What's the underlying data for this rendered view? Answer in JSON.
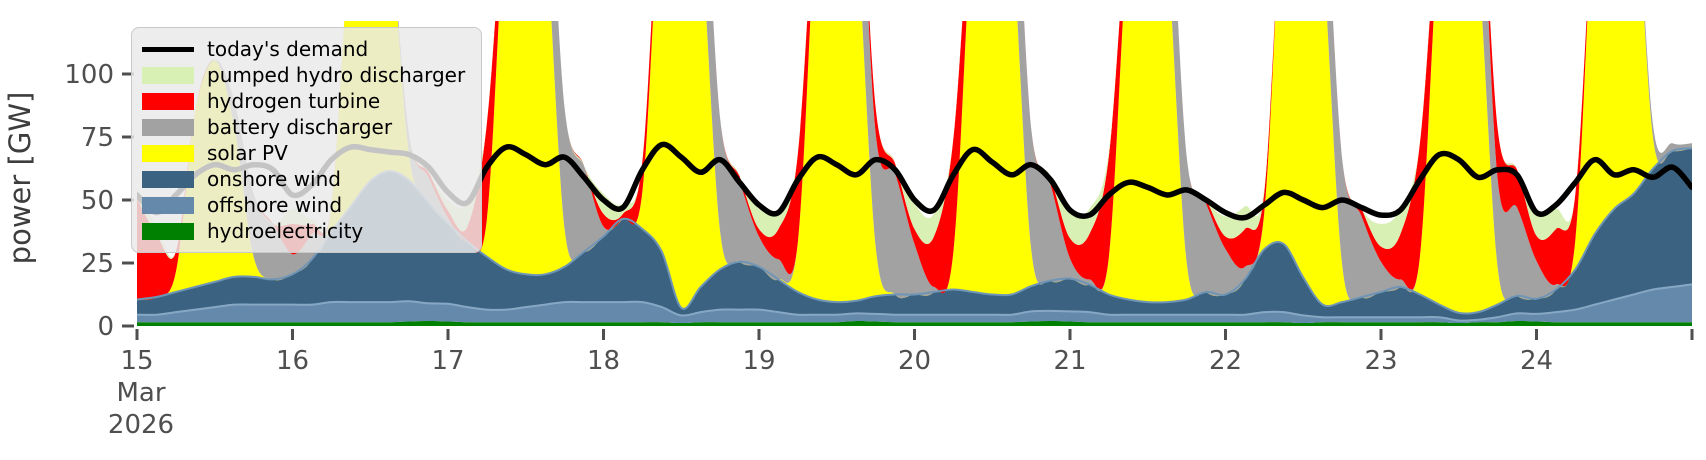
{
  "chart_data": {
    "type": "area",
    "title": "",
    "ylabel": "power [GW]",
    "xlabel_month": "Mar",
    "xlabel_year": "2026",
    "ylim": [
      0,
      121
    ],
    "y_ticks": [
      0,
      25,
      50,
      75,
      100
    ],
    "x_ticks": [
      15,
      16,
      17,
      18,
      19,
      20,
      21,
      22,
      23,
      24
    ],
    "x": {
      "start": 15,
      "step": 0.125,
      "count": 81,
      "unit": "day of March 2026"
    },
    "grid": false,
    "legend_position": "upper left",
    "axis_text_color": "#4f4f4f",
    "demand": {
      "name": "today's demand",
      "color": "#000000",
      "values": [
        52,
        45,
        52,
        60,
        64,
        62,
        64,
        62,
        52,
        56,
        66,
        71,
        70,
        69,
        68,
        63,
        53,
        49,
        63,
        71,
        68,
        64,
        67,
        59,
        50,
        47,
        62,
        72,
        67,
        61,
        66,
        57,
        48,
        45,
        58,
        67,
        64,
        60,
        66,
        62,
        50,
        46,
        60,
        70,
        65,
        60,
        64,
        58,
        46,
        44,
        52,
        57,
        55,
        52,
        54,
        50,
        45,
        43,
        48,
        53,
        50,
        47,
        50,
        47,
        44,
        46,
        58,
        68,
        66,
        59,
        62,
        60,
        45,
        48,
        57,
        66,
        60,
        62,
        59,
        63,
        55
      ]
    },
    "series": [
      {
        "name": "hydroelectricity",
        "color": "#008000",
        "values": [
          1.5,
          1.5,
          1.5,
          1.5,
          1.5,
          1.5,
          1.5,
          1.5,
          1.5,
          1.5,
          1.5,
          1.5,
          1.5,
          1.5,
          1.8,
          2,
          1.8,
          1.5,
          1.5,
          1.5,
          1.5,
          1.5,
          1.5,
          1.5,
          1.5,
          1.5,
          1.5,
          1.5,
          1.2,
          1.5,
          1.5,
          1.5,
          1.5,
          1.5,
          1.5,
          1.5,
          1.5,
          2,
          1.8,
          1.5,
          1.5,
          1.5,
          1.5,
          1.5,
          1.5,
          1.5,
          1.8,
          2,
          1.8,
          1.5,
          1.5,
          1.5,
          1.5,
          1.5,
          1.5,
          1.5,
          1.5,
          1.5,
          1.5,
          1.5,
          1.2,
          1.5,
          1.5,
          1.5,
          1.5,
          1.5,
          1.5,
          1.5,
          1.2,
          1.5,
          1.5,
          2,
          1.8,
          1.5,
          1.5,
          1.5,
          1.5,
          1.5,
          1.5,
          1.5,
          1.5
        ]
      },
      {
        "name": "offshore wind",
        "color": "#6589ab",
        "edge": "#86a8c4",
        "values": [
          3,
          3,
          4,
          5,
          6,
          7,
          7,
          7,
          7,
          7,
          8,
          8,
          8,
          8,
          8,
          7,
          7,
          6,
          5,
          5,
          6,
          7,
          8,
          8,
          8,
          8,
          8,
          6,
          3,
          4,
          5,
          5,
          5,
          4,
          3,
          3,
          3,
          3,
          3,
          3,
          3,
          3,
          3,
          3,
          3,
          3,
          4,
          4,
          4,
          4,
          3,
          3,
          3,
          3,
          3,
          3,
          3,
          3,
          4,
          4,
          3,
          2,
          2,
          2,
          2,
          2,
          2,
          2,
          1,
          1,
          2,
          3,
          3,
          4,
          5,
          7,
          9,
          11,
          13,
          14,
          15
        ]
      },
      {
        "name": "onshore wind",
        "color": "#3c6282",
        "edge": "#6f95b6",
        "values": [
          6,
          7,
          8,
          9,
          10,
          11,
          11,
          10,
          12,
          18,
          28,
          38,
          48,
          52,
          48,
          40,
          32,
          26,
          21,
          16,
          13,
          12,
          14,
          20,
          26,
          33,
          29,
          22,
          3,
          10,
          16,
          19,
          17,
          13,
          9,
          6,
          5,
          5,
          7,
          8,
          8,
          9,
          10,
          9,
          8,
          8,
          10,
          12,
          13,
          11,
          8,
          6,
          5,
          5,
          6,
          9,
          8,
          14,
          25,
          27,
          15,
          5,
          6,
          8,
          10,
          12,
          9,
          5,
          3,
          3,
          5,
          7,
          6,
          9,
          16,
          28,
          36,
          40,
          48,
          54,
          54
        ]
      },
      {
        "name": "solar PV",
        "color": "#ffff00",
        "values": [
          0,
          0,
          8,
          70,
          88,
          60,
          8,
          0,
          0,
          0,
          10,
          110,
          160,
          100,
          10,
          0,
          0,
          0,
          15,
          150,
          210,
          140,
          15,
          0,
          0,
          0,
          15,
          150,
          210,
          140,
          15,
          0,
          0,
          0,
          20,
          160,
          220,
          150,
          20,
          0,
          0,
          0,
          15,
          150,
          210,
          145,
          15,
          0,
          0,
          0,
          15,
          145,
          200,
          140,
          15,
          0,
          0,
          0,
          15,
          150,
          205,
          140,
          15,
          0,
          0,
          0,
          15,
          150,
          210,
          140,
          15,
          0,
          0,
          0,
          12,
          140,
          200,
          135,
          12,
          0,
          0
        ]
      },
      {
        "name": "battery discharger",
        "color": "#a2a2a2",
        "values": [
          0,
          0,
          0,
          0,
          0,
          10,
          25,
          22,
          8,
          10,
          0,
          0,
          0,
          0,
          8,
          10,
          2,
          0,
          0,
          0,
          0,
          45,
          48,
          34,
          4,
          0,
          0,
          0,
          0,
          45,
          45,
          32,
          12,
          8,
          0,
          0,
          0,
          50,
          45,
          48,
          20,
          2,
          0,
          0,
          0,
          48,
          48,
          38,
          8,
          2,
          0,
          0,
          0,
          42,
          42,
          35,
          18,
          5,
          0,
          0,
          0,
          38,
          42,
          32,
          12,
          3,
          0,
          0,
          0,
          52,
          35,
          35,
          15,
          2,
          0,
          0,
          0,
          5,
          5,
          3,
          2
        ]
      },
      {
        "name": "hydrogen turbine",
        "color": "#ff0000",
        "values": [
          40,
          25,
          8,
          0,
          0,
          0,
          0,
          0,
          12,
          4,
          0,
          0,
          0,
          0,
          0,
          2,
          3,
          6,
          38,
          8,
          0,
          0,
          0,
          0,
          5,
          2,
          12,
          8,
          0,
          0,
          0,
          2,
          3,
          12,
          35,
          12,
          0,
          0,
          10,
          4,
          6,
          20,
          45,
          15,
          0,
          0,
          0,
          3,
          8,
          18,
          40,
          10,
          0,
          0,
          0,
          2,
          5,
          15,
          8,
          0,
          0,
          0,
          0,
          3,
          6,
          18,
          45,
          12,
          0,
          0,
          20,
          15,
          10,
          22,
          18,
          0,
          0,
          0,
          0,
          0,
          0
        ]
      },
      {
        "name": "pumped hydro discharger",
        "color": "#d9f0b4",
        "values": [
          4,
          3,
          0,
          0,
          0,
          0,
          0,
          0,
          6,
          2,
          0,
          0,
          0,
          0,
          0,
          0,
          4,
          10,
          0,
          0,
          0,
          0,
          0,
          0,
          8,
          4,
          0,
          0,
          0,
          0,
          0,
          0,
          8,
          8,
          0,
          0,
          0,
          0,
          0,
          0,
          10,
          9,
          0,
          0,
          0,
          0,
          0,
          0,
          10,
          10,
          2,
          0,
          0,
          0,
          0,
          0,
          8,
          9,
          2,
          0,
          0,
          0,
          0,
          0,
          9,
          10,
          0,
          0,
          0,
          0,
          0,
          0,
          9,
          8,
          0,
          0,
          0,
          0,
          0,
          0,
          0
        ]
      }
    ],
    "legend_order": [
      "today's demand",
      "pumped hydro discharger",
      "hydrogen turbine",
      "battery discharger",
      "solar PV",
      "onshore wind",
      "offshore wind",
      "hydroelectricity"
    ]
  }
}
